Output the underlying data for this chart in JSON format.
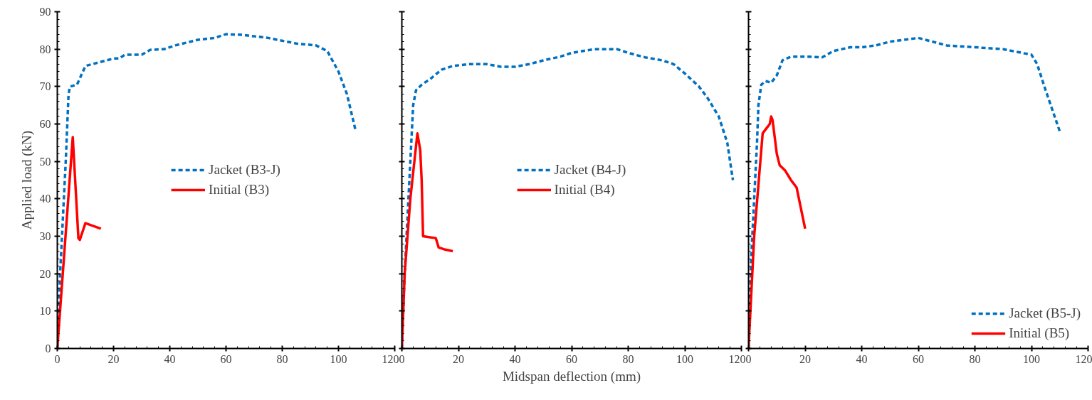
{
  "chart_data": [
    {
      "type": "line",
      "ylabel": "Applied load (kN)",
      "xlim": [
        0,
        120
      ],
      "ylim": [
        0,
        90
      ],
      "xticks": [
        0,
        20,
        40,
        60,
        80,
        100,
        120
      ],
      "yticks": [
        0,
        10,
        20,
        30,
        40,
        50,
        60,
        70,
        80,
        90
      ],
      "grid": false,
      "legend": "center",
      "marker": "none",
      "series": [
        {
          "name": "Jacket (B3-J)",
          "color": "#0070c0",
          "line_style": "dashed",
          "x": [
            0,
            1,
            2,
            3,
            4,
            4.5,
            7,
            10,
            15,
            20,
            22,
            24,
            30,
            33,
            38,
            42,
            50,
            56,
            60,
            66,
            75,
            85,
            92,
            96,
            100,
            103,
            106
          ],
          "values": [
            0,
            20,
            35,
            50,
            68,
            70,
            70.5,
            75.5,
            76.5,
            77.5,
            77.5,
            78.5,
            78.5,
            79.8,
            80,
            81,
            82.5,
            83,
            84,
            83.8,
            83,
            81.5,
            81,
            79.5,
            74,
            68,
            58.5
          ]
        },
        {
          "name": "Initial (B3)",
          "color": "#ff0000",
          "line_style": "solid",
          "x": [
            0,
            5.5,
            7.5,
            8,
            10,
            15.5
          ],
          "values": [
            0,
            56.5,
            29.5,
            29,
            33.5,
            32
          ]
        }
      ]
    },
    {
      "type": "line",
      "xlabel": "Midspan deflection (mm)",
      "xlim": [
        0,
        120
      ],
      "ylim": [
        0,
        90
      ],
      "xticks": [
        0,
        20,
        40,
        60,
        80,
        100,
        120
      ],
      "yticks": [
        0,
        10,
        20,
        30,
        40,
        50,
        60,
        70,
        80,
        90
      ],
      "tick_labels": "x",
      "grid": false,
      "legend": "center",
      "marker": "none",
      "series": [
        {
          "name": "Jacket (B4-J)",
          "color": "#0070c0",
          "line_style": "dashed",
          "x": [
            0,
            1,
            2,
            3,
            4,
            5,
            7,
            10,
            14,
            18,
            24,
            30,
            35,
            40,
            45,
            50,
            56,
            60,
            68,
            76,
            80,
            86,
            92,
            96,
            100,
            105,
            108,
            112,
            115,
            117
          ],
          "values": [
            0,
            20,
            35,
            50,
            65,
            69,
            70.5,
            72,
            74.5,
            75.5,
            76,
            76,
            75.3,
            75.3,
            76,
            77,
            78,
            79,
            80,
            80,
            79,
            77.8,
            77,
            76,
            73.5,
            70,
            67,
            62,
            55,
            45
          ]
        },
        {
          "name": "Initial (B4)",
          "color": "#ff0000",
          "line_style": "solid",
          "x": [
            0,
            1,
            3,
            5.5,
            6.5,
            7,
            7.5,
            10,
            12,
            13,
            15,
            18
          ],
          "values": [
            0,
            20,
            40,
            57.5,
            53,
            45,
            30,
            29.7,
            29.5,
            27,
            26.5,
            26
          ]
        }
      ]
    },
    {
      "type": "line",
      "xlim": [
        0,
        120
      ],
      "ylim": [
        0,
        90
      ],
      "xticks": [
        0,
        20,
        40,
        60,
        80,
        100,
        120
      ],
      "yticks": [
        0,
        10,
        20,
        30,
        40,
        50,
        60,
        70,
        80,
        90
      ],
      "tick_labels": "x",
      "grid": false,
      "legend": "bottom right",
      "marker": "none",
      "series": [
        {
          "name": "Jacket (B5-J)",
          "color": "#0070c0",
          "line_style": "dashed",
          "x": [
            0,
            1,
            2,
            3,
            3.5,
            4.5,
            6,
            8,
            10,
            12,
            15,
            20,
            26,
            30,
            36,
            40,
            45,
            50,
            60,
            70,
            80,
            90,
            100,
            102,
            105,
            110
          ],
          "values": [
            0,
            25,
            40,
            55,
            65,
            70.5,
            71.5,
            71,
            73,
            77,
            78,
            78,
            77.8,
            79.5,
            80.5,
            80.5,
            81,
            82,
            83,
            81,
            80.5,
            80,
            78.5,
            76,
            69,
            58
          ]
        },
        {
          "name": "Initial (B5)",
          "color": "#ff0000",
          "line_style": "solid",
          "x": [
            0,
            2,
            5,
            6,
            7.5,
            8,
            8.5,
            10,
            11,
            13,
            15,
            17,
            20
          ],
          "values": [
            0,
            30,
            57.5,
            58.5,
            60,
            62,
            61,
            52,
            49,
            47.5,
            45,
            43,
            32
          ]
        }
      ]
    }
  ]
}
